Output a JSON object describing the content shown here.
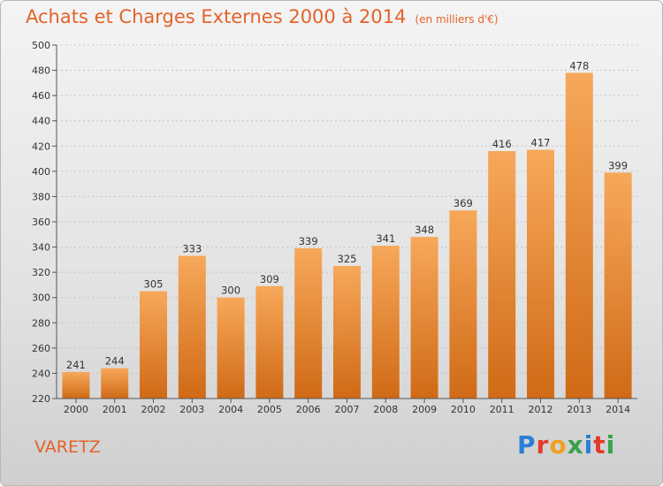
{
  "chart_data": {
    "type": "bar",
    "title": "Achats et Charges Externes 2000 à 2014",
    "subtitle": "(en milliers d'€)",
    "categories": [
      "2000",
      "2001",
      "2002",
      "2003",
      "2004",
      "2005",
      "2006",
      "2007",
      "2008",
      "2009",
      "2010",
      "2011",
      "2012",
      "2013",
      "2014"
    ],
    "values": [
      241,
      244,
      305,
      333,
      300,
      309,
      339,
      325,
      341,
      348,
      369,
      416,
      417,
      478,
      399
    ],
    "ylim": [
      220,
      500
    ],
    "yticks": [
      "220",
      "240",
      "260",
      "280",
      "300",
      "320",
      "340",
      "360",
      "380",
      "400",
      "420",
      "440",
      "460",
      "480",
      "500"
    ],
    "grid": true,
    "bar_color_top": "#f7a85a",
    "bar_color_bottom": "#d06a16",
    "accent": "#e4622a"
  },
  "footer": {
    "town": "VARETZ",
    "logo": "Proxiti"
  }
}
